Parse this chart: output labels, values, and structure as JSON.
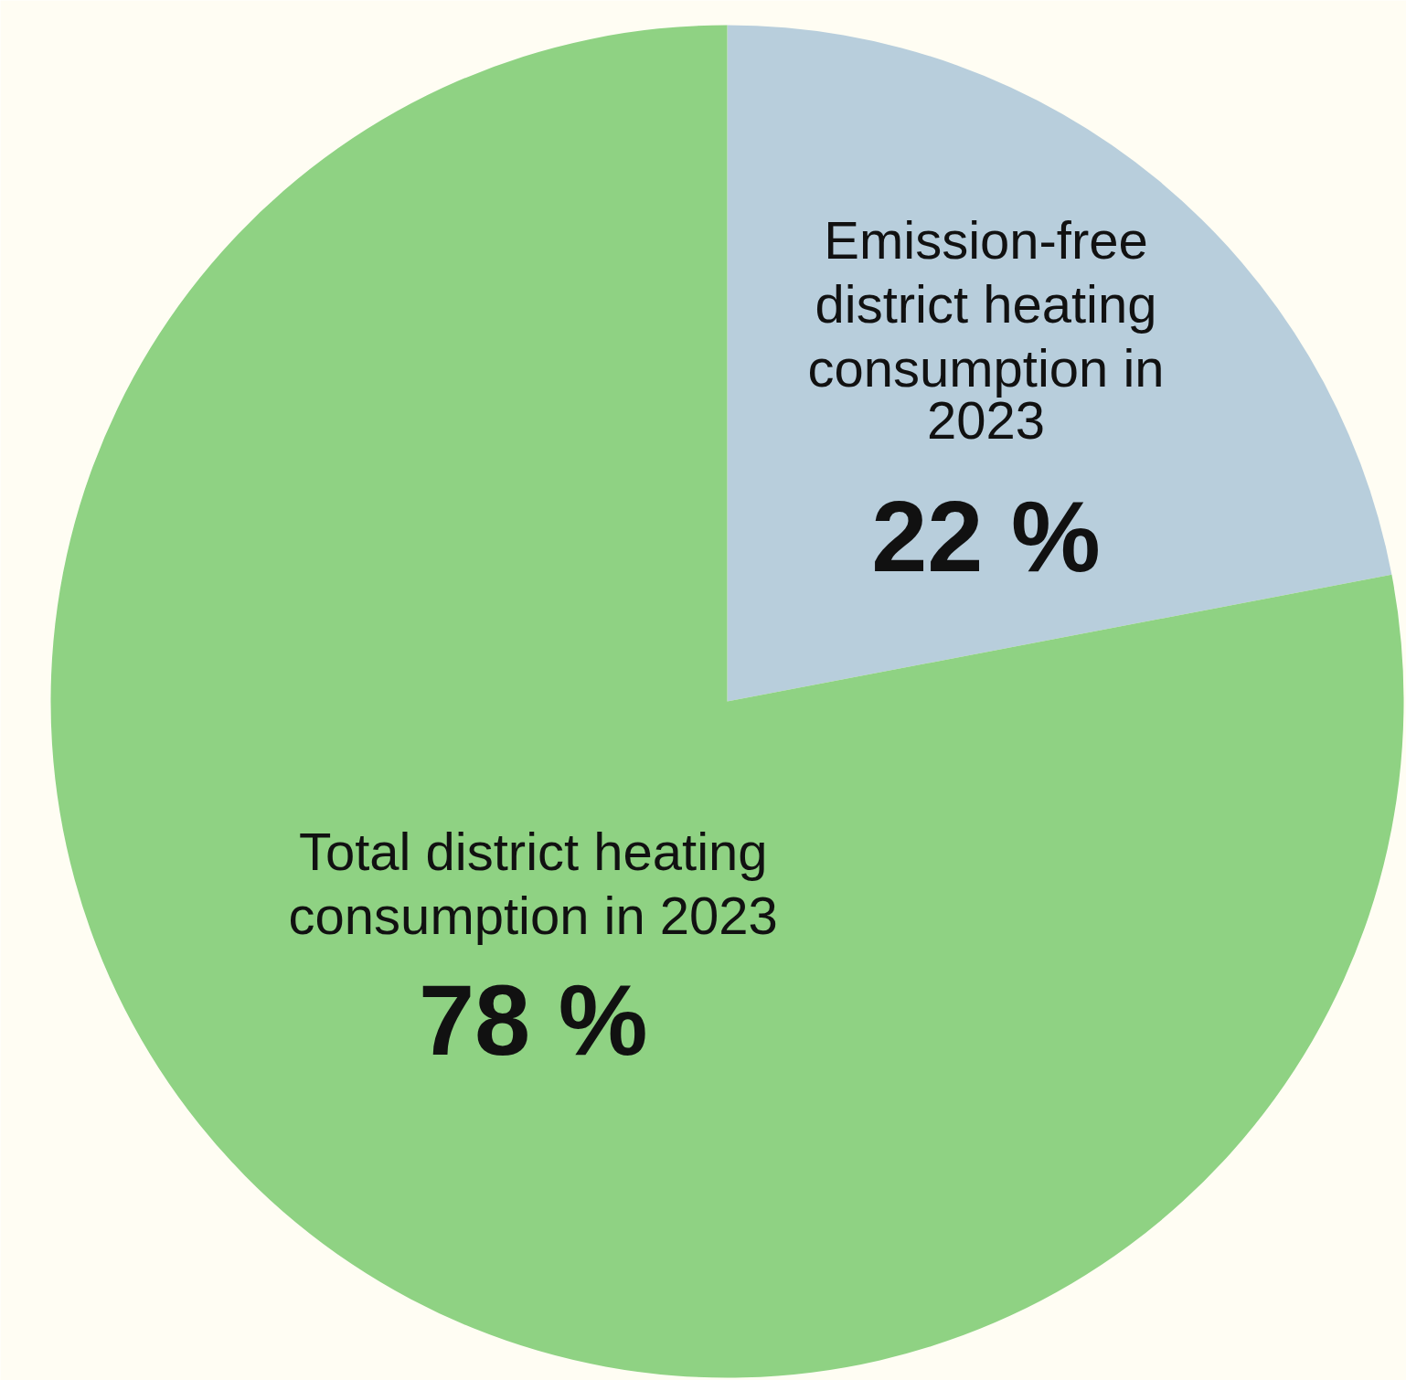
{
  "chart_data": {
    "type": "pie",
    "categories": [
      "Emission-free district heating consumption in 2023",
      "Total district heating consumption in 2023"
    ],
    "values": [
      22,
      78
    ],
    "colors": [
      "#b8cedc",
      "#8fd283"
    ],
    "value_labels": [
      "22 %",
      "78 %"
    ]
  }
}
